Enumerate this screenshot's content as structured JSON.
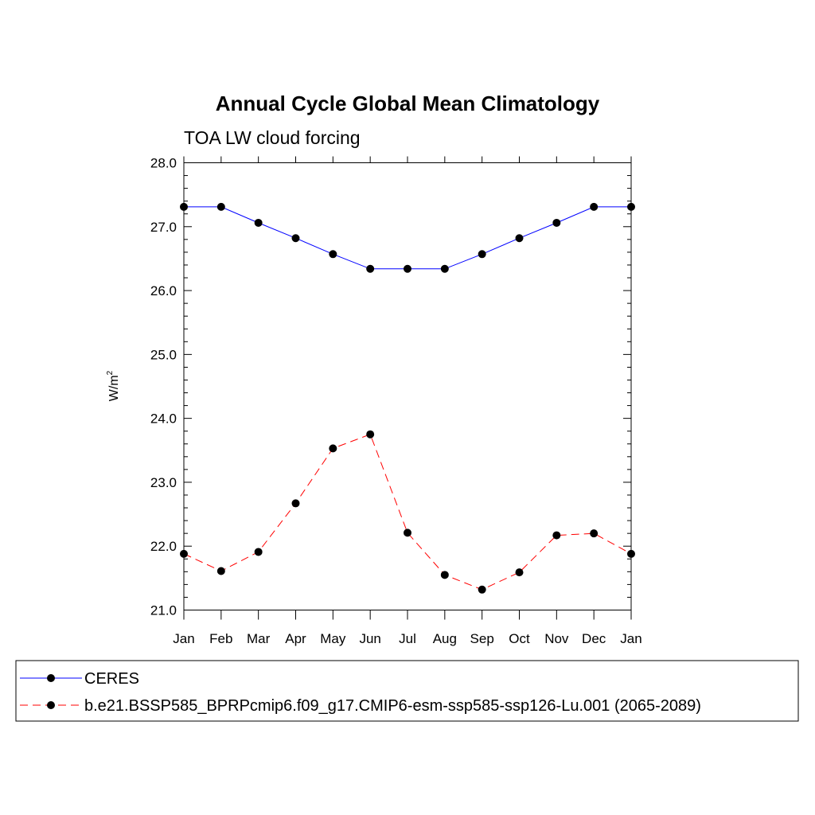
{
  "chart_data": {
    "type": "line",
    "title": "Annual Cycle Global Mean Climatology",
    "subtitle": "TOA LW cloud forcing",
    "ylabel": "W/m",
    "ylabel_sup": "2",
    "xlabel": "",
    "ylim": [
      21.0,
      28.0
    ],
    "yticks": [
      "21.0",
      "22.0",
      "23.0",
      "24.0",
      "25.0",
      "26.0",
      "27.0",
      "28.0"
    ],
    "categories": [
      "Jan",
      "Feb",
      "Mar",
      "Apr",
      "May",
      "Jun",
      "Jul",
      "Aug",
      "Sep",
      "Oct",
      "Nov",
      "Dec",
      "Jan"
    ],
    "grid": false,
    "legend_position": "bottom",
    "series": [
      {
        "name": "CERES",
        "color": "#0000ff",
        "dash": "solid",
        "values": [
          27.31,
          27.31,
          27.06,
          26.82,
          26.57,
          26.34,
          26.34,
          26.34,
          26.57,
          26.82,
          27.06,
          27.31,
          27.31
        ]
      },
      {
        "name": "b.e21.BSSP585_BPRPcmip6.f09_g17.CMIP6-esm-ssp585-ssp126-Lu.001 (2065-2089)",
        "color": "#ff0000",
        "dash": "dashed",
        "values": [
          21.88,
          21.61,
          21.91,
          22.67,
          23.53,
          23.75,
          22.21,
          21.55,
          21.32,
          21.59,
          22.17,
          22.2,
          21.88
        ]
      }
    ]
  }
}
